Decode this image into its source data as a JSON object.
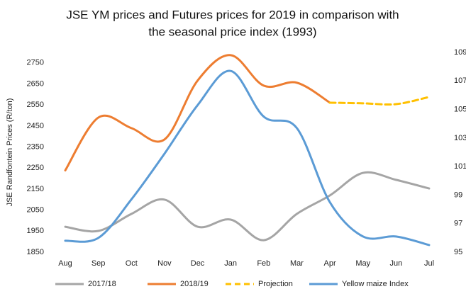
{
  "chart_data": {
    "type": "line",
    "title": [
      "JSE YM prices and Futures prices for 2019 in comparison with",
      "the seasonal price index (1993)"
    ],
    "y_label": "JSE Randfontein Prices (R/ton)",
    "categories": [
      "Aug",
      "Sep",
      "Oct",
      "Nov",
      "Dec",
      "Jan",
      "Feb",
      "Mar",
      "Apr",
      "May",
      "Jun",
      "Jul"
    ],
    "ylim": [
      1850,
      2800
    ],
    "yticks": [
      1850,
      1950,
      2050,
      2150,
      2250,
      2350,
      2450,
      2550,
      2650,
      2750
    ],
    "y2lim": [
      95,
      109
    ],
    "y2ticks": [
      95,
      97,
      99,
      101,
      103,
      105,
      107,
      109
    ],
    "legend": "bottom",
    "series": [
      {
        "name": "2017/18",
        "color": "#a5a5a5",
        "dash": false,
        "values": [
          1971,
          1951,
          2032,
          2100,
          1971,
          2005,
          1907,
          2032,
          2120,
          2227,
          2194,
          2153
        ]
      },
      {
        "name": "2018/19",
        "color": "#ed7d31",
        "dash": false,
        "values": [
          2239,
          2490,
          2440,
          2386,
          2666,
          2787,
          2642,
          2656,
          2561,
          null,
          null,
          null
        ]
      },
      {
        "name": "Projection",
        "color": "#ffc000",
        "dash": true,
        "values": [
          null,
          null,
          null,
          null,
          null,
          null,
          null,
          null,
          2561,
          2558,
          2554,
          2588
        ]
      },
      {
        "name": "Yellow maize Index",
        "color": "#5b9bd5",
        "dash": false,
        "axis": "y2",
        "values": [
          95.8,
          96.0,
          98.7,
          101.9,
          105.3,
          107.7,
          104.5,
          103.7,
          98.5,
          96.1,
          96.1,
          95.5
        ]
      }
    ]
  }
}
